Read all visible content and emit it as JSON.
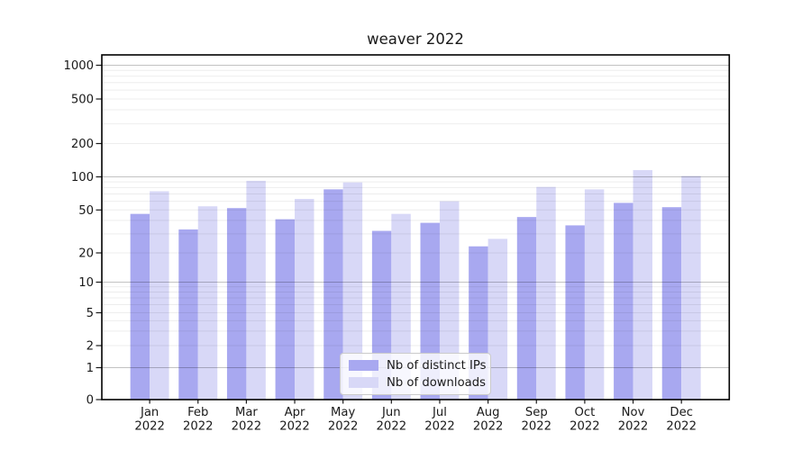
{
  "chart_data": {
    "type": "bar",
    "title": "weaver 2022",
    "categories": [
      "Jan",
      "Feb",
      "Mar",
      "Apr",
      "May",
      "Jun",
      "Jul",
      "Aug",
      "Sep",
      "Oct",
      "Nov",
      "Dec"
    ],
    "category_year": "2022",
    "series": [
      {
        "name": "Nb of distinct IPs",
        "color": "#a8a8f0",
        "values": [
          46,
          33,
          52,
          41,
          77,
          32,
          38,
          23,
          43,
          36,
          58,
          53
        ]
      },
      {
        "name": "Nb of downloads",
        "color": "#d8d8f7",
        "values": [
          74,
          54,
          92,
          63,
          89,
          46,
          60,
          27,
          81,
          77,
          115,
          102
        ]
      }
    ],
    "yscale": "symlog",
    "yticks": [
      0,
      1,
      2,
      5,
      10,
      20,
      50,
      100,
      200,
      500,
      1000
    ],
    "ylim": [
      0,
      1200
    ],
    "xlabel": "",
    "ylabel": "",
    "grid": true,
    "legend_position": "lower center",
    "colors": {
      "axis": "#000000",
      "text": "#1a1a1a",
      "major_grid": "rgba(0,0,0,0.24)",
      "minor_grid": "rgba(0,0,0,0.07)"
    }
  }
}
